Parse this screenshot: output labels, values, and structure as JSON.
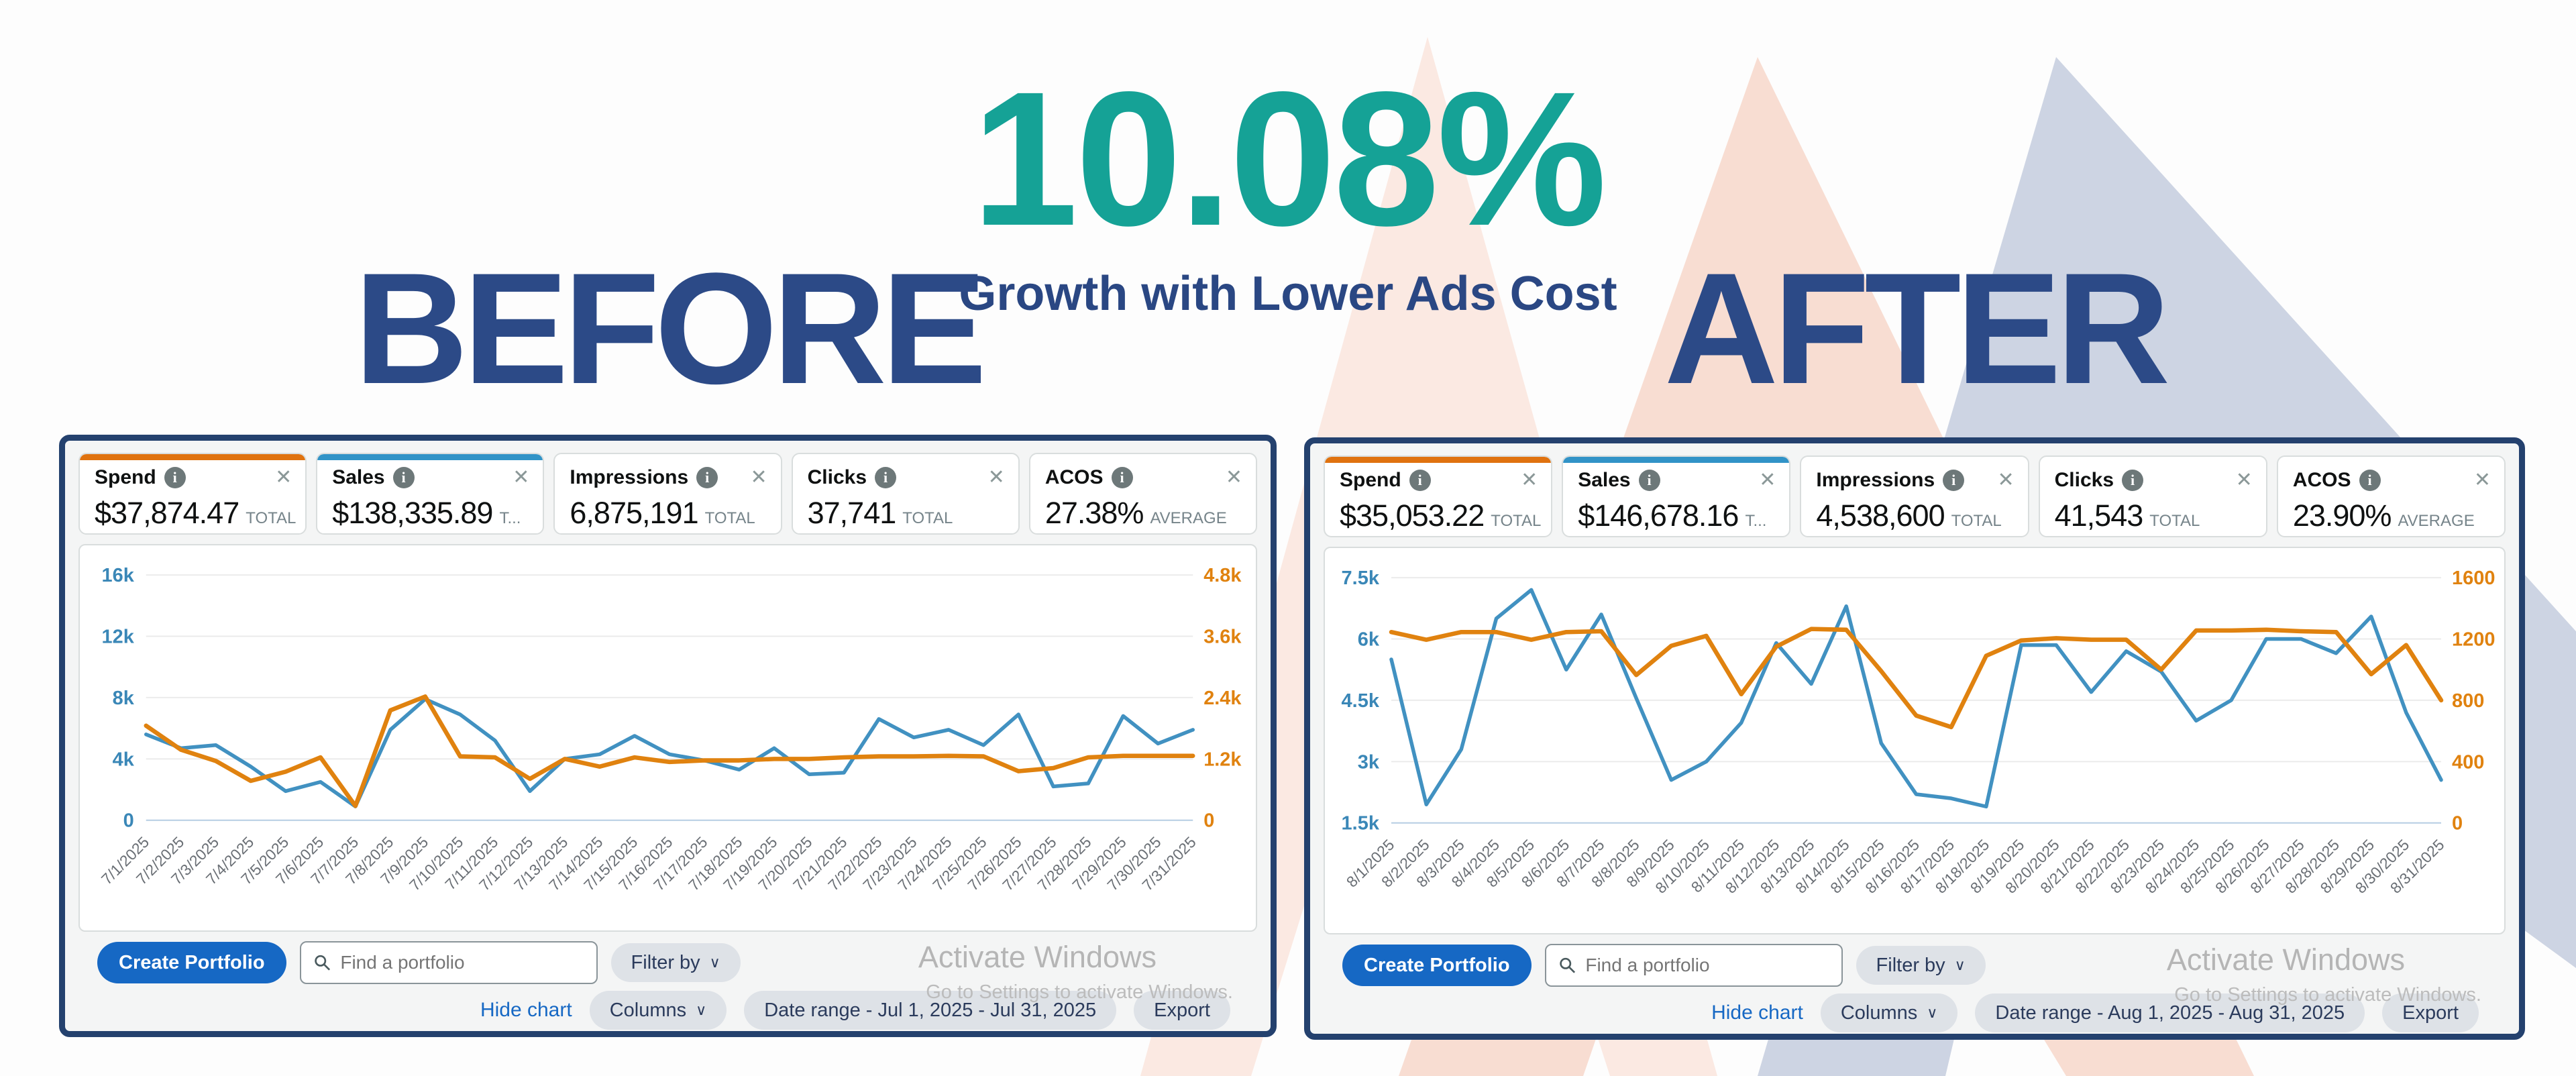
{
  "header": {
    "title": "10.08%",
    "subtitle": "Growth with Lower Ads Cost",
    "before_label": "BEFORE",
    "after_label": "AFTER"
  },
  "icons": {
    "info": "i",
    "close": "✕",
    "chevron": "∨",
    "search": "search-icon"
  },
  "colors": {
    "teal": "#15A296",
    "navy": "#2C4A87",
    "panel_border": "#24416E",
    "spend_orange": "#E0720F",
    "sales_blue": "#3193C7",
    "line_blue": "#4191C1",
    "line_orange": "#E0820F",
    "button_blue": "#1668C4",
    "mountain_pink_light": "#FBE9E2",
    "mountain_pink": "#F8DDD2",
    "mountain_gray_blue": "#CDD4E3"
  },
  "panels": [
    {
      "panel_id": "before",
      "cards": [
        {
          "label": "Spend",
          "value": "$37,874.47",
          "unit": "TOTAL",
          "accent": "#E0720F"
        },
        {
          "label": "Sales",
          "value": "$138,335.89",
          "unit": "T...",
          "accent": "#3193C7"
        },
        {
          "label": "Impressions",
          "value": "6,875,191",
          "unit": "TOTAL"
        },
        {
          "label": "Clicks",
          "value": "37,741",
          "unit": "TOTAL"
        },
        {
          "label": "ACOS",
          "value": "27.38%",
          "unit": "AVERAGE"
        }
      ],
      "toolbar": {
        "create_portfolio": "Create Portfolio",
        "search_placeholder": "Find a portfolio",
        "filter_by": "Filter by",
        "hide_chart": "Hide chart",
        "columns": "Columns",
        "date_range": "Date range - Jul 1, 2025 - Jul 31, 2025",
        "export": "Export",
        "watermark": "Activate Windows",
        "watermark_sub": "Go to Settings to activate Windows."
      }
    },
    {
      "panel_id": "after",
      "cards": [
        {
          "label": "Spend",
          "value": "$35,053.22",
          "unit": "TOTAL",
          "accent": "#E0720F"
        },
        {
          "label": "Sales",
          "value": "$146,678.16",
          "unit": "T...",
          "accent": "#3193C7"
        },
        {
          "label": "Impressions",
          "value": "4,538,600",
          "unit": "TOTAL"
        },
        {
          "label": "Clicks",
          "value": "41,543",
          "unit": "TOTAL"
        },
        {
          "label": "ACOS",
          "value": "23.90%",
          "unit": "AVERAGE"
        }
      ],
      "toolbar": {
        "create_portfolio": "Create Portfolio",
        "search_placeholder": "Find a portfolio",
        "filter_by": "Filter by",
        "hide_chart": "Hide chart",
        "columns": "Columns",
        "date_range": "Date range - Aug 1, 2025 - Aug 31, 2025",
        "export": "Export",
        "watermark": "Activate Windows",
        "watermark_sub": "Go to Settings to activate Windows."
      }
    }
  ],
  "chart_data": [
    {
      "type": "line",
      "grid": true,
      "legend": "none",
      "x": [
        "7/1/2025",
        "7/2/2025",
        "7/3/2025",
        "7/4/2025",
        "7/5/2025",
        "7/6/2025",
        "7/7/2025",
        "7/8/2025",
        "7/9/2025",
        "7/10/2025",
        "7/11/2025",
        "7/12/2025",
        "7/13/2025",
        "7/14/2025",
        "7/15/2025",
        "7/16/2025",
        "7/17/2025",
        "7/18/2025",
        "7/19/2025",
        "7/20/2025",
        "7/21/2025",
        "7/22/2025",
        "7/23/2025",
        "7/24/2025",
        "7/25/2025",
        "7/26/2025",
        "7/27/2025",
        "7/28/2025",
        "7/29/2025",
        "7/30/2025",
        "7/31/2025"
      ],
      "left_axis": {
        "min": 0,
        "max": 16000,
        "ticks": [
          "0",
          "4k",
          "8k",
          "12k",
          "16k"
        ],
        "tick_values": [
          0,
          4000,
          8000,
          12000,
          16000
        ]
      },
      "right_axis": {
        "min": 0,
        "max": 4800,
        "ticks": [
          "0",
          "1.2k",
          "2.4k",
          "3.6k",
          "4.8k"
        ],
        "tick_values": [
          0,
          1200,
          2400,
          3600,
          4800
        ]
      },
      "series": [
        {
          "name": "Sales",
          "axis": "left",
          "color": "#4191C1",
          "values": [
            5600,
            4700,
            4900,
            3500,
            1900,
            2500,
            900,
            5900,
            7900,
            6900,
            5200,
            1900,
            4000,
            4300,
            5500,
            4300,
            3900,
            3300,
            4700,
            3000,
            3100,
            6600,
            5400,
            5900,
            4900,
            6900,
            2200,
            2400,
            6800,
            5000,
            5900
          ]
        },
        {
          "name": "Spend",
          "axis": "right",
          "color": "#E0820F",
          "values": [
            1850,
            1380,
            1160,
            770,
            950,
            1230,
            280,
            2150,
            2420,
            1250,
            1230,
            810,
            1200,
            1050,
            1230,
            1140,
            1170,
            1170,
            1200,
            1200,
            1230,
            1250,
            1250,
            1260,
            1250,
            960,
            1020,
            1230,
            1260,
            1260,
            1260
          ]
        }
      ]
    },
    {
      "type": "line",
      "grid": true,
      "legend": "none",
      "x": [
        "8/1/2025",
        "8/2/2025",
        "8/3/2025",
        "8/4/2025",
        "8/5/2025",
        "8/6/2025",
        "8/7/2025",
        "8/8/2025",
        "8/9/2025",
        "8/10/2025",
        "8/11/2025",
        "8/12/2025",
        "8/13/2025",
        "8/14/2025",
        "8/15/2025",
        "8/16/2025",
        "8/17/2025",
        "8/18/2025",
        "8/19/2025",
        "8/20/2025",
        "8/21/2025",
        "8/22/2025",
        "8/23/2025",
        "8/24/2025",
        "8/25/2025",
        "8/26/2025",
        "8/27/2025",
        "8/28/2025",
        "8/29/2025",
        "8/30/2025",
        "8/31/2025"
      ],
      "left_axis": {
        "min": 1500,
        "max": 7500,
        "ticks": [
          "1.5k",
          "3k",
          "4.5k",
          "6k",
          "7.5k"
        ],
        "tick_values": [
          1500,
          3000,
          4500,
          6000,
          7500
        ]
      },
      "right_axis": {
        "min": 0,
        "max": 1600,
        "ticks": [
          "0",
          "400",
          "800",
          "1200",
          "1600"
        ],
        "tick_values": [
          0,
          400,
          800,
          1200,
          1600
        ]
      },
      "series": [
        {
          "name": "Sales",
          "axis": "left",
          "color": "#4191C1",
          "values": [
            5500,
            1950,
            3300,
            6500,
            7200,
            5250,
            6600,
            4550,
            2550,
            3000,
            3950,
            5900,
            4900,
            6800,
            3450,
            2200,
            2100,
            1900,
            5850,
            5850,
            4700,
            5700,
            5200,
            4000,
            4500,
            6000,
            6000,
            5650,
            6550,
            4200,
            2550
          ]
        },
        {
          "name": "Spend",
          "axis": "right",
          "color": "#E0820F",
          "values": [
            1245,
            1195,
            1245,
            1245,
            1195,
            1245,
            1250,
            965,
            1155,
            1220,
            840,
            1150,
            1265,
            1260,
            990,
            700,
            625,
            1090,
            1190,
            1205,
            1195,
            1195,
            1000,
            1255,
            1255,
            1260,
            1250,
            1245,
            970,
            1160,
            800
          ]
        }
      ]
    }
  ]
}
